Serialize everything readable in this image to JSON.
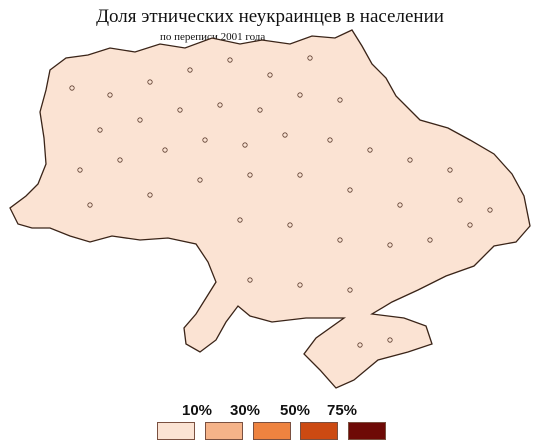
{
  "title": "Доля этнических неукраинцев в населении",
  "subtitle": "по переписи 2001 года",
  "legend": {
    "thresholds": [
      "10%",
      "30%",
      "50%",
      "75%"
    ],
    "bins": [
      {
        "color": "#fbe3d3"
      },
      {
        "color": "#f5b389"
      },
      {
        "color": "#ee8340"
      },
      {
        "color": "#cc4a12"
      },
      {
        "color": "#6e0a06"
      }
    ]
  },
  "colors": {
    "border": "#4a3024",
    "base": "#fbe3d3",
    "low": "#f5b389",
    "mid": "#ee8340",
    "high": "#cc4a12",
    "very_high": "#6e0a06"
  }
}
